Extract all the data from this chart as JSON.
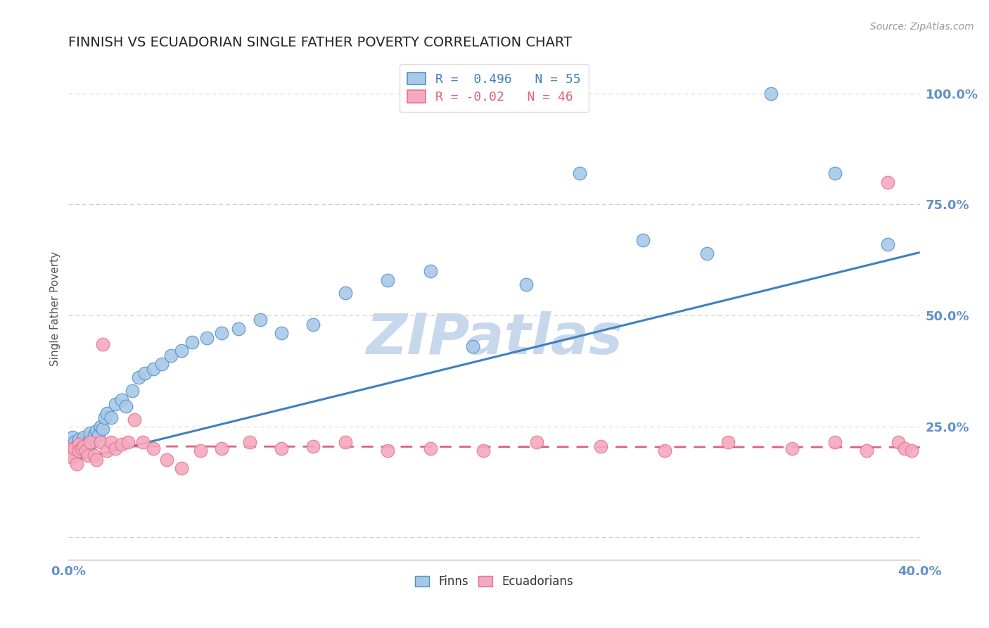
{
  "title": "FINNISH VS ECUADORIAN SINGLE FATHER POVERTY CORRELATION CHART",
  "source": "Source: ZipAtlas.com",
  "ylabel": "Single Father Poverty",
  "xlim": [
    0.0,
    0.4
  ],
  "ylim": [
    -0.05,
    1.08
  ],
  "yticks": [
    0.0,
    0.25,
    0.5,
    0.75,
    1.0
  ],
  "ytick_labels": [
    "",
    "25.0%",
    "50.0%",
    "75.0%",
    "100.0%"
  ],
  "xticks": [
    0.0,
    0.05,
    0.1,
    0.15,
    0.2,
    0.25,
    0.3,
    0.35,
    0.4
  ],
  "xtick_labels": [
    "0.0%",
    "",
    "",
    "",
    "",
    "",
    "",
    "",
    "40.0%"
  ],
  "finns_R": 0.496,
  "finns_N": 55,
  "ecuadorians_R": -0.02,
  "ecuadorians_N": 46,
  "finn_color": "#A8C8E8",
  "ecuadorian_color": "#F4AABE",
  "finn_edge_color": "#5090C8",
  "ecuadorian_edge_color": "#E87090",
  "finn_line_color": "#4080C0",
  "ecuadorian_line_color": "#E06080",
  "watermark": "ZIPatlas",
  "watermark_color": "#C8D8EC",
  "background_color": "#FFFFFF",
  "title_color": "#222222",
  "axis_color": "#6090C8",
  "grid_color": "#CCCCCC",
  "legend_finn_color": "#4080C0",
  "legend_ecua_color": "#E06080",
  "finn_line_intercept": 0.17,
  "finn_line_slope": 1.18,
  "ecua_line_intercept": 0.205,
  "ecua_line_slope": -0.005,
  "finns_x": [
    0.001,
    0.001,
    0.002,
    0.002,
    0.003,
    0.003,
    0.004,
    0.004,
    0.005,
    0.005,
    0.006,
    0.006,
    0.007,
    0.007,
    0.008,
    0.009,
    0.01,
    0.01,
    0.011,
    0.012,
    0.013,
    0.014,
    0.015,
    0.016,
    0.017,
    0.018,
    0.02,
    0.022,
    0.025,
    0.027,
    0.03,
    0.033,
    0.036,
    0.04,
    0.044,
    0.048,
    0.053,
    0.058,
    0.065,
    0.072,
    0.08,
    0.09,
    0.1,
    0.115,
    0.13,
    0.15,
    0.17,
    0.19,
    0.215,
    0.24,
    0.27,
    0.3,
    0.33,
    0.36,
    0.385
  ],
  "finns_y": [
    0.195,
    0.21,
    0.185,
    0.225,
    0.2,
    0.215,
    0.19,
    0.205,
    0.2,
    0.22,
    0.195,
    0.215,
    0.205,
    0.225,
    0.21,
    0.2,
    0.22,
    0.235,
    0.215,
    0.23,
    0.24,
    0.23,
    0.25,
    0.245,
    0.27,
    0.28,
    0.27,
    0.3,
    0.31,
    0.295,
    0.33,
    0.36,
    0.37,
    0.38,
    0.39,
    0.41,
    0.42,
    0.44,
    0.45,
    0.46,
    0.47,
    0.49,
    0.46,
    0.48,
    0.55,
    0.58,
    0.6,
    0.43,
    0.57,
    0.82,
    0.67,
    0.64,
    1.0,
    0.82,
    0.66
  ],
  "ecuadorians_x": [
    0.001,
    0.002,
    0.002,
    0.003,
    0.004,
    0.005,
    0.005,
    0.006,
    0.007,
    0.008,
    0.009,
    0.01,
    0.012,
    0.013,
    0.015,
    0.016,
    0.018,
    0.02,
    0.022,
    0.025,
    0.028,
    0.031,
    0.035,
    0.04,
    0.046,
    0.053,
    0.062,
    0.072,
    0.085,
    0.1,
    0.115,
    0.13,
    0.15,
    0.17,
    0.195,
    0.22,
    0.25,
    0.28,
    0.31,
    0.34,
    0.36,
    0.375,
    0.385,
    0.39,
    0.393,
    0.396
  ],
  "ecuadorians_y": [
    0.19,
    0.2,
    0.18,
    0.2,
    0.165,
    0.21,
    0.195,
    0.2,
    0.205,
    0.195,
    0.185,
    0.215,
    0.185,
    0.175,
    0.215,
    0.435,
    0.195,
    0.215,
    0.2,
    0.21,
    0.215,
    0.265,
    0.215,
    0.2,
    0.175,
    0.155,
    0.195,
    0.2,
    0.215,
    0.2,
    0.205,
    0.215,
    0.195,
    0.2,
    0.195,
    0.215,
    0.205,
    0.195,
    0.215,
    0.2,
    0.215,
    0.195,
    0.8,
    0.215,
    0.2,
    0.195
  ]
}
